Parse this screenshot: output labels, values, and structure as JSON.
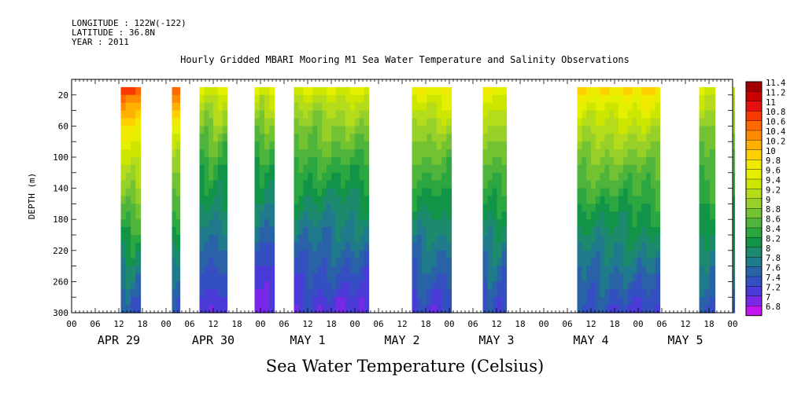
{
  "header": {
    "longitude": "LONGITUDE : 122W(-122)",
    "latitude": "LATITUDE : 36.8N",
    "year": "YEAR : 2011"
  },
  "title": "Hourly Gridded MBARI Mooring M1 Sea Water Temperature and Salinity Observations",
  "bottom_title": "Sea Water Temperature (Celsius)",
  "chart_data": {
    "type": "heatmap",
    "ylabel": "DEPTH (m)",
    "ylim": [
      300,
      0
    ],
    "y_ticks": [
      20,
      60,
      100,
      140,
      180,
      220,
      260,
      300
    ],
    "x_unit": "hours from APR 29 00",
    "xlim": [
      0,
      168
    ],
    "x_tick_labels": [
      "00",
      "06",
      "12",
      "18",
      "00",
      "06",
      "12",
      "18",
      "00",
      "06",
      "12",
      "18",
      "00",
      "06",
      "12",
      "18",
      "00",
      "06",
      "12",
      "18",
      "00",
      "06",
      "12",
      "18",
      "00",
      "06",
      "12",
      "18",
      "00"
    ],
    "day_labels": [
      "APR 29",
      "APR 30",
      "MAY  1",
      "MAY  2",
      "MAY  3",
      "MAY  4",
      "MAY  5"
    ],
    "colorbar": {
      "levels": [
        "11.4",
        "11.2",
        "11",
        "10.8",
        "10.6",
        "10.4",
        "10.2",
        "10",
        "9.8",
        "9.6",
        "9.4",
        "9.2",
        "9",
        "8.8",
        "8.6",
        "8.4",
        "8.2",
        "8",
        "7.8",
        "7.6",
        "7.4",
        "7.2",
        "7",
        "6.8"
      ],
      "colors": [
        "#a00000",
        "#c80000",
        "#e61010",
        "#f83a00",
        "#ff6a00",
        "#ff8c00",
        "#ffb000",
        "#ffd000",
        "#f0ea00",
        "#e4f000",
        "#cde600",
        "#b4dc1a",
        "#98d02a",
        "#72c232",
        "#4eb43c",
        "#2ca640",
        "#129448",
        "#1d8a6e",
        "#1f7a8c",
        "#2a62a8",
        "#3450c0",
        "#4a3ad6",
        "#7a28e8",
        "#c414f0"
      ]
    },
    "segments": [
      {
        "start": 12.5,
        "end": 17.5,
        "surface_temp": 10.8,
        "bottom_temp": 7.5
      },
      {
        "start": 25.5,
        "end": 27.5,
        "surface_temp": 10.6,
        "bottom_temp": 7.4
      },
      {
        "start": 32.5,
        "end": 39.5,
        "surface_temp": 9.6,
        "bottom_temp": 7.2
      },
      {
        "start": 46.5,
        "end": 51.5,
        "surface_temp": 9.6,
        "bottom_temp": 7.0
      },
      {
        "start": 56.5,
        "end": 75.5,
        "surface_temp": 9.6,
        "bottom_temp": 7.2
      },
      {
        "start": 86.5,
        "end": 96.5,
        "surface_temp": 9.8,
        "bottom_temp": 7.3
      },
      {
        "start": 104.5,
        "end": 110.5,
        "surface_temp": 9.8,
        "bottom_temp": 7.4
      },
      {
        "start": 128.5,
        "end": 149.5,
        "surface_temp": 10.0,
        "bottom_temp": 7.4
      },
      {
        "start": 159.5,
        "end": 163.5,
        "surface_temp": 9.6,
        "bottom_temp": 7.6
      },
      {
        "start": 168.0,
        "end": 168.5,
        "surface_temp": 9.6,
        "bottom_temp": 7.6
      }
    ]
  }
}
